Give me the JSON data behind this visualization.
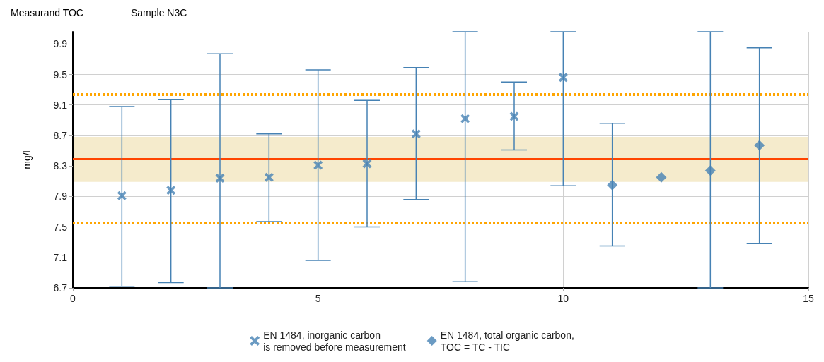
{
  "chart_data": {
    "type": "scatter",
    "title": "Measurand TOC",
    "subtitle": "Sample N3C",
    "ylabel": "mg/l",
    "xlim": [
      0,
      15
    ],
    "xticks": [
      0,
      5,
      10,
      15
    ],
    "ylim": [
      6.7,
      10.06
    ],
    "yticks": [
      6.7,
      7.1,
      7.5,
      7.9,
      8.3,
      8.7,
      9.1,
      9.5,
      9.9
    ],
    "grid": true,
    "legend": "bottom",
    "series": [
      {
        "name": "EN 1484, inorganic carbon\nis removed before measurement",
        "color": "#4682b4",
        "marker": "cross",
        "x": [
          1,
          2,
          3,
          4,
          5,
          6,
          7,
          8,
          9,
          10
        ],
        "values": [
          7.91,
          7.98,
          8.14,
          8.15,
          8.31,
          8.33,
          8.72,
          8.92,
          8.95,
          9.46
        ],
        "errors": [
          [
            6.72,
            9.08
          ],
          [
            6.77,
            9.17
          ],
          [
            6.7,
            9.77
          ],
          [
            7.57,
            8.72
          ],
          [
            7.06,
            9.56
          ],
          [
            7.5,
            9.16
          ],
          [
            7.86,
            9.59
          ],
          [
            6.78,
            10.06
          ],
          [
            8.51,
            9.4
          ],
          [
            8.04,
            10.06
          ]
        ]
      },
      {
        "name": "EN 1484, total organic carbon,\nTOC = TC - TIC",
        "color": "#4682b4",
        "marker": "diamond",
        "x": [
          11,
          12,
          13,
          14
        ],
        "values": [
          8.05,
          8.15,
          8.24,
          8.57
        ],
        "errors": [
          [
            7.25,
            8.86
          ],
          null,
          [
            6.7,
            10.06
          ],
          [
            7.28,
            9.85
          ]
        ]
      }
    ],
    "ref_lines": [
      {
        "axis": "y",
        "value": 8.39,
        "color": "#ff4500",
        "line_style": "solid"
      },
      {
        "axis": "y",
        "value": 9.24,
        "color": "#ffa500",
        "line_style": "dotted"
      },
      {
        "axis": "y",
        "value": 7.55,
        "color": "#ffa500",
        "line_style": "dotted"
      }
    ],
    "bands": [
      {
        "axis": "y",
        "from": 8.09,
        "to": 8.68,
        "color": "#f5ebcc"
      }
    ]
  }
}
